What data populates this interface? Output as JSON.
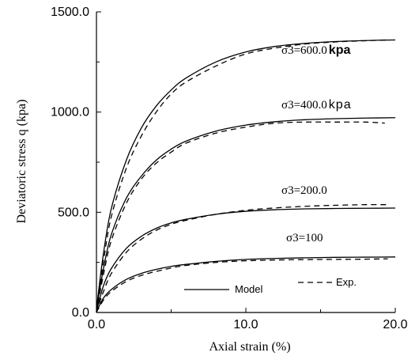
{
  "chart_data": {
    "type": "line",
    "title": "",
    "xlabel": "Axial strain (%)",
    "ylabel": "Deviatoric stress q (kpa)",
    "xlim": [
      0,
      20
    ],
    "ylim": [
      0,
      1500
    ],
    "xticks": [
      0,
      10,
      20
    ],
    "xtick_labels": [
      "0.0",
      "10.0",
      "20.0"
    ],
    "yticks": [
      0,
      500,
      1000,
      1500
    ],
    "ytick_labels": [
      "0.0",
      "500.0",
      "1000.0",
      "1500.0"
    ],
    "grid": false,
    "legend": {
      "position": "bottom-right",
      "entries": [
        {
          "name": "Model",
          "style": "solid"
        },
        {
          "name": "Exp.",
          "style": "dashed"
        }
      ]
    },
    "annotations": [
      {
        "series": "600",
        "text": "σ3=600.0",
        "suffix": "kpa",
        "suffix_bold": true
      },
      {
        "series": "400",
        "text": "σ3=400.0",
        "suffix": "kpa",
        "suffix_bold": false
      },
      {
        "series": "200",
        "text": "σ3=200.0",
        "suffix": "",
        "suffix_bold": false
      },
      {
        "series": "100",
        "text": "σ3=100",
        "suffix": "",
        "suffix_bold": false
      }
    ],
    "series": [
      {
        "id": "600-model",
        "style": "solid",
        "x": [
          0,
          0.1,
          0.5,
          1,
          2,
          3,
          4,
          5,
          6,
          8,
          10,
          12,
          14,
          16,
          18,
          20
        ],
        "y": [
          0,
          80,
          310,
          520,
          760,
          920,
          1030,
          1110,
          1170,
          1250,
          1300,
          1328,
          1343,
          1352,
          1357,
          1360
        ]
      },
      {
        "id": "600-exp",
        "style": "dashed",
        "x": [
          0,
          0.1,
          0.5,
          1,
          2,
          3,
          4,
          5,
          6,
          8,
          10,
          12,
          14,
          16,
          18,
          19.5
        ],
        "y": [
          0,
          60,
          270,
          480,
          720,
          880,
          1000,
          1090,
          1150,
          1230,
          1290,
          1320,
          1340,
          1350,
          1356,
          1360
        ]
      },
      {
        "id": "400-model",
        "style": "solid",
        "x": [
          0,
          0.1,
          0.5,
          1,
          2,
          3,
          4,
          5,
          6,
          8,
          10,
          12,
          14,
          16,
          18,
          20
        ],
        "y": [
          0,
          60,
          230,
          390,
          570,
          680,
          760,
          815,
          855,
          905,
          935,
          952,
          962,
          967,
          970,
          972
        ]
      },
      {
        "id": "400-exp",
        "style": "dashed",
        "x": [
          0,
          0.1,
          0.5,
          1,
          2,
          3,
          4,
          5,
          6,
          8,
          10,
          12,
          14,
          16,
          18,
          19.3
        ],
        "y": [
          0,
          45,
          200,
          360,
          545,
          665,
          745,
          800,
          845,
          895,
          925,
          945,
          950,
          950,
          950,
          945
        ]
      },
      {
        "id": "200-model",
        "style": "solid",
        "x": [
          0,
          0.1,
          0.5,
          1,
          2,
          3,
          4,
          5,
          6,
          8,
          10,
          12,
          14,
          16,
          18,
          20
        ],
        "y": [
          0,
          35,
          140,
          220,
          320,
          380,
          420,
          447,
          465,
          490,
          505,
          513,
          517,
          519,
          520,
          521
        ]
      },
      {
        "id": "200-exp",
        "style": "dashed",
        "x": [
          0,
          0.1,
          0.5,
          1,
          2,
          3,
          4,
          5,
          6,
          8,
          10,
          12,
          14,
          16,
          18,
          19.5
        ],
        "y": [
          0,
          25,
          110,
          195,
          300,
          365,
          410,
          440,
          460,
          490,
          510,
          522,
          530,
          535,
          538,
          538
        ]
      },
      {
        "id": "100-model",
        "style": "solid",
        "x": [
          0,
          0.1,
          0.5,
          1,
          2,
          3,
          4,
          5,
          6,
          8,
          10,
          12,
          14,
          16,
          18,
          20
        ],
        "y": [
          0,
          20,
          75,
          115,
          165,
          195,
          215,
          230,
          240,
          255,
          265,
          270,
          273,
          275,
          276,
          277
        ]
      },
      {
        "id": "100-exp",
        "style": "dashed",
        "x": [
          0,
          0.1,
          0.5,
          1,
          2,
          3,
          4,
          5,
          6,
          8,
          10,
          12,
          14,
          16,
          18,
          19.5
        ],
        "y": [
          0,
          15,
          65,
          105,
          155,
          185,
          205,
          222,
          235,
          250,
          258,
          262,
          264,
          265,
          266,
          268
        ]
      }
    ]
  }
}
